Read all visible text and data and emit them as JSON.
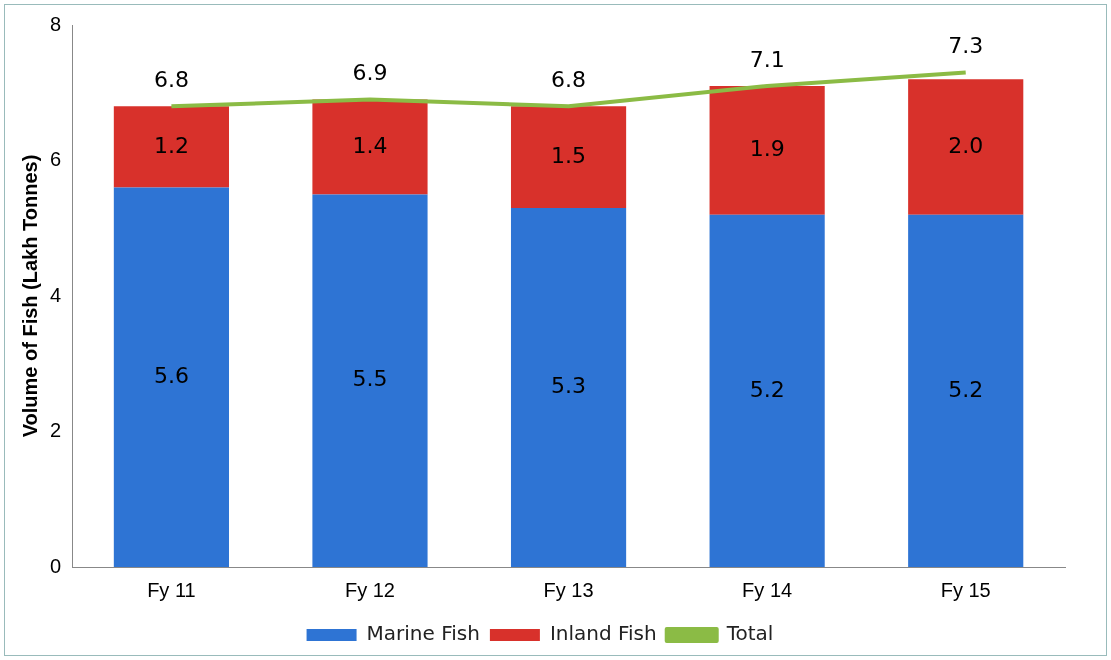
{
  "chart_data": {
    "type": "bar",
    "stacked": true,
    "ylabel": "Volume of Fish (Lakh Tonnes)",
    "categories": [
      "Fy 11",
      "Fy 12",
      "Fy 13",
      "Fy 14",
      "Fy 15"
    ],
    "series": [
      {
        "name": "Marine Fish",
        "color": "#2e74d4",
        "values": [
          5.6,
          5.5,
          5.3,
          5.2,
          5.2
        ],
        "value_labels": [
          "5.6",
          "5.5",
          "5.3",
          "5.2",
          "5.2"
        ]
      },
      {
        "name": "Inland Fish",
        "color": "#d8312b",
        "values": [
          1.2,
          1.4,
          1.5,
          1.9,
          2.0
        ],
        "value_labels": [
          "1.2",
          "1.4",
          "1.5",
          "1.9",
          "2.0"
        ]
      },
      {
        "name": "Total",
        "type": "line",
        "color": "#8bbb45",
        "values": [
          6.8,
          6.9,
          6.8,
          7.1,
          7.3
        ],
        "value_labels": [
          "6.8",
          "6.9",
          "6.8",
          "7.1",
          "7.3"
        ]
      }
    ],
    "ylim": [
      0,
      8
    ],
    "yticks": [
      0,
      2,
      4,
      6,
      8
    ],
    "grid": false,
    "legend": "bottom",
    "marker": "none"
  }
}
